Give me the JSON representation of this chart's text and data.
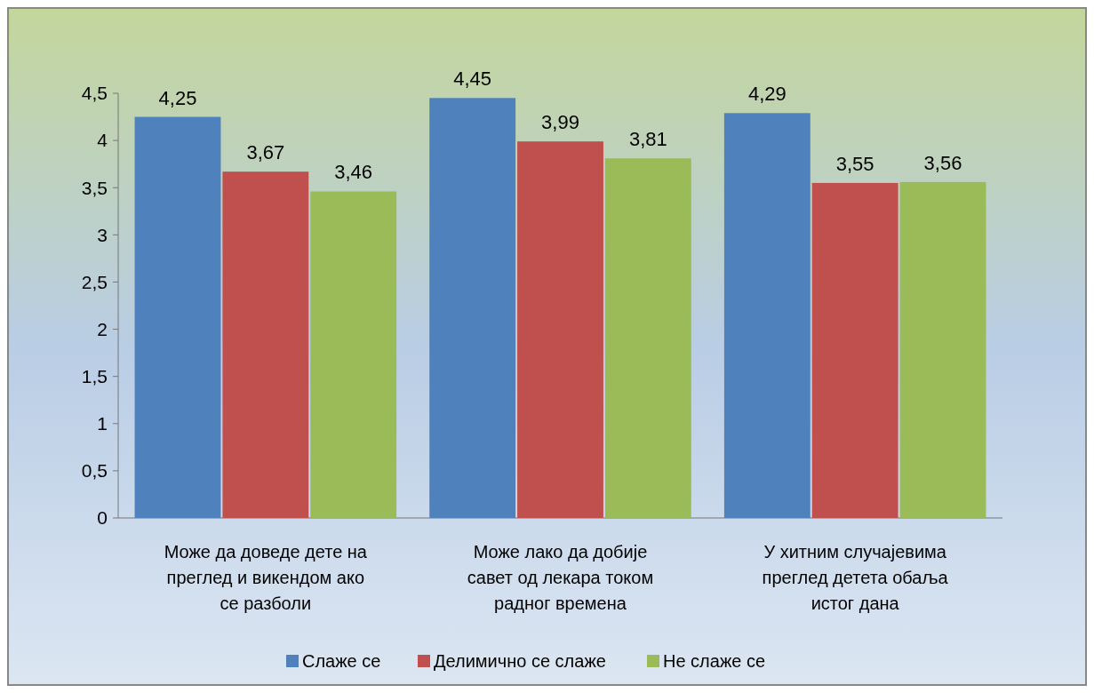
{
  "chart_data": {
    "type": "bar",
    "categories": [
      "Може да доведе дете на преглед и викендом ако се разболи",
      "Може лако да добије савет од лекара током радног времена",
      "У хитним случајевима преглед детета обаља истог дана"
    ],
    "series": [
      {
        "name": "Слаже се",
        "color": "#4f81bd",
        "values": [
          4.25,
          4.45,
          4.29
        ],
        "value_labels": [
          "4,25",
          "4,45",
          "4,29"
        ]
      },
      {
        "name": "Делимично се слаже",
        "color": "#c0504d",
        "values": [
          3.67,
          3.99,
          3.55
        ],
        "value_labels": [
          "3,67",
          "3,99",
          "3,55"
        ]
      },
      {
        "name": "Не слаже се",
        "color": "#9bbb59",
        "values": [
          3.46,
          3.81,
          3.56
        ],
        "value_labels": [
          "3,46",
          "3,81",
          "3,56"
        ]
      }
    ],
    "ylim": [
      0,
      4.5
    ],
    "yticks": [
      0,
      {
        "value": 0.5,
        "label": "0,5"
      },
      1,
      {
        "value": 1.5,
        "label": "1,5"
      },
      2,
      {
        "value": 2.5,
        "label": "2,5"
      },
      3,
      {
        "value": 3.5,
        "label": "3,5"
      },
      4,
      {
        "value": 4.5,
        "label": "4,5"
      }
    ],
    "grid": false,
    "legend": "bottom"
  }
}
